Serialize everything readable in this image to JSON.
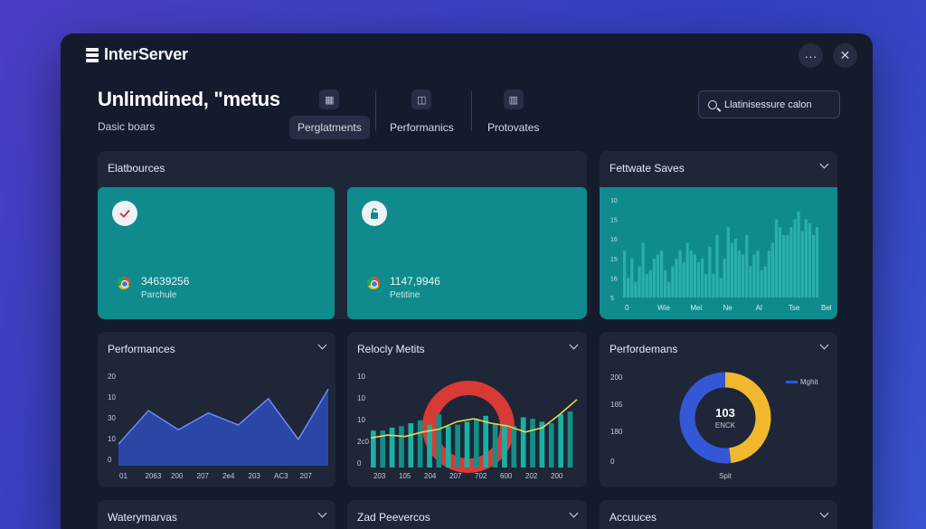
{
  "app": {
    "name": "InterServer"
  },
  "window_controls": {
    "more": "···",
    "close": "✕"
  },
  "header": {
    "title": "Unlimdined, \"metus",
    "subtitle": "Dasic boars"
  },
  "nav": [
    {
      "label": "Perglatments",
      "icon": "grid-icon"
    },
    {
      "label": "Performanics",
      "icon": "data-icon"
    },
    {
      "label": "Protovates",
      "icon": "columns-icon"
    }
  ],
  "search": {
    "value": "Llatinisessure calon"
  },
  "panels": {
    "resources": {
      "title": "Elatbources",
      "cards": [
        {
          "icon": "check-icon",
          "value": "34639256",
          "label": "Parchule"
        },
        {
          "icon": "lock-icon",
          "value": "1147,9946",
          "label": "Petitine"
        }
      ]
    },
    "feature_saves": {
      "title": "Fettwate Saves",
      "ylabels": [
        "10",
        "15",
        "16",
        "15",
        "16",
        "5"
      ],
      "xlabels": [
        "0",
        "Wie",
        "Mei",
        "Ne",
        "Al",
        "Tse",
        "Bel"
      ]
    },
    "performances": {
      "title": "Performances",
      "ylabels": [
        "20",
        "10",
        "30",
        "10",
        "0"
      ],
      "xlabels": [
        "01",
        "2063",
        "200",
        "207",
        "2e4",
        "203",
        "AC3",
        "207"
      ]
    },
    "velocity": {
      "title": "Relocly Metits",
      "ylabels": [
        "10",
        "10",
        "10",
        "2c0",
        "0"
      ],
      "xlabels": [
        "203",
        "105",
        "204",
        "207",
        "702",
        "600",
        "202",
        "200"
      ]
    },
    "performdemans": {
      "title": "Perfordemans",
      "ylabels": [
        "200",
        "165",
        "180",
        "0"
      ],
      "legend": "Mghit",
      "donut_value": "103",
      "donut_sub": "ENCK",
      "donut_caption": "Spit"
    },
    "bottom": [
      {
        "title": "Waterymarvas"
      },
      {
        "title": "Zad Peevercos"
      },
      {
        "title": "Accuuces"
      }
    ]
  },
  "chart_data": [
    {
      "type": "bar",
      "title": "Fettwate Saves",
      "values": [
        12,
        5,
        10,
        4,
        8,
        14,
        6,
        7,
        10,
        11,
        12,
        7,
        4,
        8,
        10,
        12,
        9,
        14,
        12,
        11,
        9,
        10,
        6,
        13,
        6,
        16,
        5,
        10,
        18,
        14,
        15,
        12,
        11,
        16,
        8,
        11,
        12,
        7,
        8,
        12,
        14,
        20,
        18,
        16,
        16,
        18,
        20,
        22,
        17,
        20,
        19,
        16,
        18
      ],
      "ylim": [
        0,
        25
      ]
    },
    {
      "type": "area",
      "title": "Performances",
      "x": [
        "01",
        "2063",
        "200",
        "207",
        "2e4",
        "203",
        "AC3",
        "207"
      ],
      "values": [
        9,
        23,
        15,
        22,
        17,
        28,
        11,
        32
      ],
      "ylim": [
        0,
        40
      ]
    },
    {
      "type": "bar",
      "title": "Relocly Metits",
      "values": [
        25,
        25,
        27,
        28,
        30,
        32,
        29,
        36,
        28,
        29,
        31,
        33,
        35,
        30,
        29,
        28,
        34,
        33,
        31,
        30,
        36,
        38
      ],
      "line": [
        20,
        22,
        21,
        24,
        26,
        31,
        33,
        30,
        28,
        24,
        27,
        36,
        46
      ],
      "ylim": [
        0,
        60
      ]
    },
    {
      "type": "pie",
      "title": "Perfordemans",
      "slices": [
        {
          "name": "Mghit",
          "value": 48
        },
        {
          "name": "",
          "value": 52
        }
      ],
      "colors": [
        "#f1b82d",
        "#3457d5"
      ]
    }
  ],
  "colors": {
    "teal": "#0f8b8d",
    "panel": "#1e2638",
    "window": "#141b2d",
    "bar_blue": "#2f4fb5",
    "donut_yellow": "#f1b82d",
    "donut_blue": "#3457d5"
  }
}
